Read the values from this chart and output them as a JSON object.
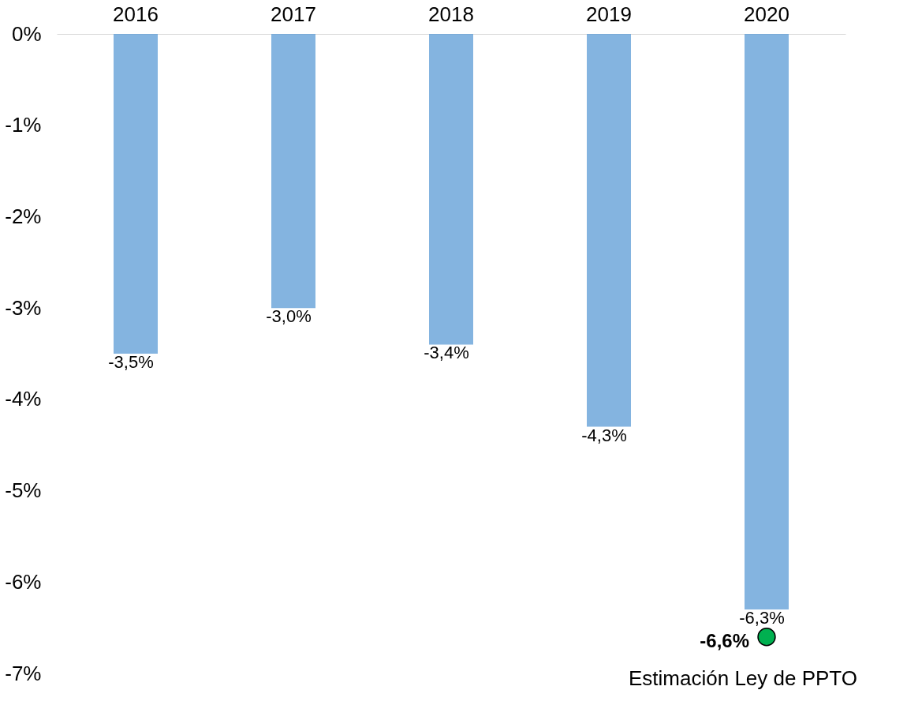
{
  "chart_data": {
    "type": "bar",
    "categories": [
      "2016",
      "2017",
      "2018",
      "2019",
      "2020"
    ],
    "series": [
      {
        "color": "#5b9bd5",
        "values": [
          -3.5,
          -3.0,
          -3.4,
          -4.3,
          -6.3
        ],
        "value_labels": [
          "-3,5%",
          "-3,0%",
          "-3,4%",
          "-4,3%",
          "-6,3%"
        ]
      },
      {
        "type": "scatter",
        "color": "#00b050",
        "values": [
          null,
          null,
          null,
          null,
          -6.6
        ],
        "value_labels": [
          null,
          null,
          null,
          null,
          "-6,6%"
        ]
      }
    ],
    "ylim": [
      -7,
      0
    ],
    "yticks": [
      {
        "value": 0,
        "label": "0%"
      },
      {
        "value": -1,
        "label": "-1%"
      },
      {
        "value": -2,
        "label": "-2%"
      },
      {
        "value": -3,
        "label": "-3%"
      },
      {
        "value": -4,
        "label": "-4%"
      },
      {
        "value": -5,
        "label": "-5%"
      },
      {
        "value": -6,
        "label": "-6%"
      },
      {
        "value": -7,
        "label": "-7%"
      }
    ],
    "annotations": [
      {
        "text": "Estimación Ley de PPTO",
        "x": "2020",
        "y": -6.6
      }
    ],
    "grid": false,
    "marker": "circle"
  }
}
